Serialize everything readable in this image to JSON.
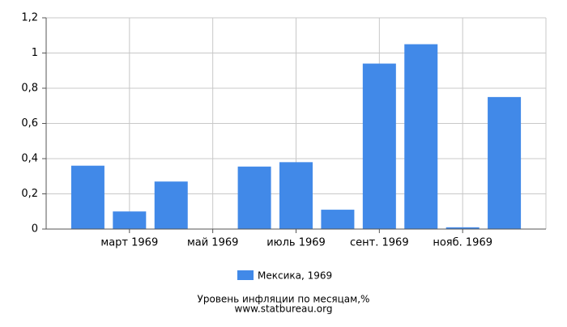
{
  "chart_data": {
    "type": "bar",
    "title": "Уровень инфляции по месяцам,%",
    "source": "www.statbureau.org",
    "categories": [
      null,
      "март 1969",
      null,
      "май 1969",
      null,
      "июль 1969",
      null,
      "сент. 1969",
      null,
      "нояб. 1969",
      null
    ],
    "series": [
      {
        "name": "Мексика, 1969",
        "color": "#4189e8",
        "values": [
          0.36,
          0.1,
          0.27,
          0,
          0.355,
          0.38,
          0.11,
          0.94,
          1.05,
          0.01,
          0.75
        ]
      }
    ],
    "ylim": [
      0,
      1.2
    ],
    "yticks": [
      0,
      {
        "value": 0.2,
        "label": "0,2"
      },
      {
        "value": 0.4,
        "label": "0,4"
      },
      {
        "value": 0.6,
        "label": "0,6"
      },
      {
        "value": 0.8,
        "label": "0,8"
      },
      1,
      {
        "value": 1.2,
        "label": "1,2"
      }
    ],
    "grid": true,
    "legend": "bottom"
  }
}
